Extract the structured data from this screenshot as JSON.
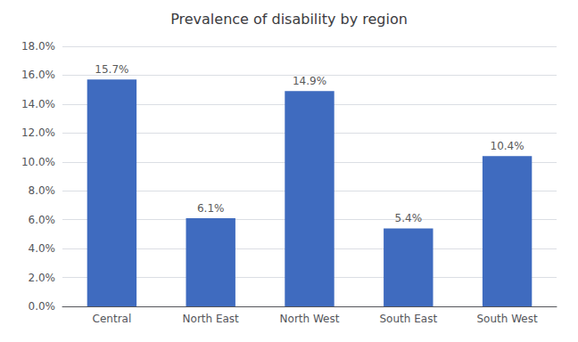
{
  "chart_data": {
    "type": "bar",
    "title": "Prevalence of disability by region",
    "categories": [
      "Central",
      "North East",
      "North West",
      "South East",
      "South West"
    ],
    "values": [
      15.7,
      6.1,
      14.9,
      5.4,
      10.4
    ],
    "value_labels": [
      "15.7%",
      "6.1%",
      "14.9%",
      "5.4%",
      "10.4%"
    ],
    "data_labels": true,
    "color": "#3F6BBF",
    "ylim": [
      0,
      18.0
    ],
    "yticks": [
      {
        "value": 0,
        "label": "0.0%"
      },
      {
        "value": 2,
        "label": "2.0%"
      },
      {
        "value": 4,
        "label": "4.0%"
      },
      {
        "value": 6,
        "label": "6.0%"
      },
      {
        "value": 8,
        "label": "8.0%"
      },
      {
        "value": 10,
        "label": "10.0%"
      },
      {
        "value": 12,
        "label": "12.0%"
      },
      {
        "value": 14,
        "label": "14.0%"
      },
      {
        "value": 16,
        "label": "16.0%"
      },
      {
        "value": 18,
        "label": "18.0%"
      }
    ],
    "grid": true
  }
}
